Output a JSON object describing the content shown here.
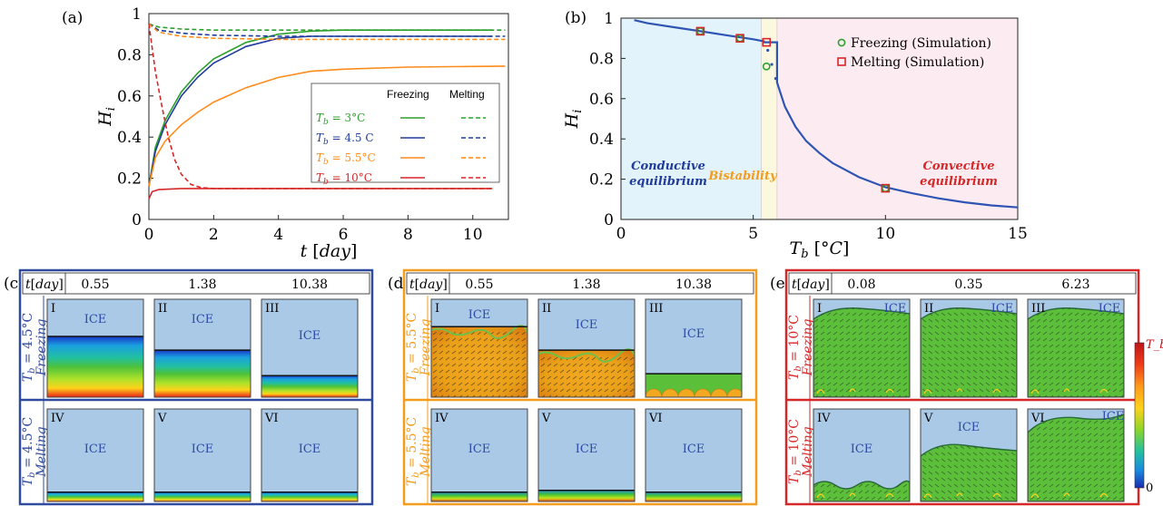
{
  "panel_labels": {
    "a": "(a)",
    "b": "(b)",
    "c": "(c)",
    "d": "(d)",
    "e": "(e)"
  },
  "chart_data": [
    {
      "type": "line",
      "panel": "(a)",
      "xlabel": "t [day]",
      "ylabel": "H_i",
      "xlim": [
        0,
        11.1
      ],
      "ylim": [
        0,
        1
      ],
      "xticks": [
        "0",
        "2",
        "4",
        "6",
        "8",
        "10"
      ],
      "yticks": [
        "0",
        "0.2",
        "0.4",
        "0.6",
        "0.8",
        "1"
      ],
      "legend": {
        "placement": "center-right",
        "col_freezing": "Freezing",
        "col_melting": "Melting",
        "rows": [
          {
            "label": "T_b = 3°C",
            "color": "#2ca02c"
          },
          {
            "label": "T_b = 4.5 C",
            "color": "#1f3c9c"
          },
          {
            "label": "T_b = 5.5°C",
            "color": "#ff8c1a"
          },
          {
            "label": "T_b = 10°C",
            "color": "#d62728"
          }
        ]
      },
      "series": [
        {
          "name": "T_b = 3°C",
          "mode": "Freezing",
          "color": "#2ca02c",
          "dash": false,
          "x": [
            0,
            0.2,
            0.5,
            1,
            1.5,
            2,
            3,
            4,
            5,
            6,
            8,
            10.6
          ],
          "y": [
            0.16,
            0.35,
            0.48,
            0.62,
            0.71,
            0.78,
            0.86,
            0.9,
            0.915,
            0.92,
            0.92,
            0.92
          ]
        },
        {
          "name": "T_b = 4.5 C",
          "mode": "Freezing",
          "color": "#1f3c9c",
          "dash": false,
          "x": [
            0,
            0.2,
            0.5,
            1,
            1.5,
            2,
            3,
            4,
            5,
            6,
            8,
            10.6
          ],
          "y": [
            0.16,
            0.33,
            0.46,
            0.6,
            0.69,
            0.76,
            0.84,
            0.88,
            0.89,
            0.89,
            0.89,
            0.89
          ]
        },
        {
          "name": "T_b = 5.5°C",
          "mode": "Freezing",
          "color": "#ff8c1a",
          "dash": false,
          "x": [
            0,
            0.2,
            0.5,
            1,
            1.5,
            2,
            3,
            4,
            5,
            6,
            8,
            11
          ],
          "y": [
            0.16,
            0.3,
            0.38,
            0.46,
            0.52,
            0.57,
            0.64,
            0.69,
            0.72,
            0.73,
            0.74,
            0.745
          ]
        },
        {
          "name": "T_b = 10°C",
          "mode": "Freezing",
          "color": "#d62728",
          "dash": false,
          "x": [
            0,
            0.1,
            0.3,
            1,
            2,
            4,
            6,
            8,
            10.6
          ],
          "y": [
            0.1,
            0.135,
            0.145,
            0.15,
            0.15,
            0.15,
            0.15,
            0.15,
            0.15
          ]
        },
        {
          "name": "T_b = 3°C",
          "mode": "Melting",
          "color": "#2ca02c",
          "dash": true,
          "x": [
            0,
            0.3,
            1,
            2,
            4,
            8,
            11
          ],
          "y": [
            0.95,
            0.935,
            0.925,
            0.92,
            0.92,
            0.92,
            0.92
          ]
        },
        {
          "name": "T_b = 4.5 C",
          "mode": "Melting",
          "color": "#1f3c9c",
          "dash": true,
          "x": [
            0,
            0.3,
            1,
            2,
            4,
            8,
            11
          ],
          "y": [
            0.95,
            0.92,
            0.905,
            0.895,
            0.89,
            0.89,
            0.89
          ]
        },
        {
          "name": "T_b = 5.5°C",
          "mode": "Melting",
          "color": "#ff8c1a",
          "dash": true,
          "x": [
            0,
            0.3,
            1,
            2,
            4,
            8,
            11
          ],
          "y": [
            0.95,
            0.91,
            0.89,
            0.88,
            0.875,
            0.875,
            0.875
          ]
        },
        {
          "name": "T_b = 10°C",
          "mode": "Melting",
          "color": "#d62728",
          "dash": true,
          "x": [
            0,
            0.2,
            0.4,
            0.6,
            0.8,
            1.0,
            1.3,
            1.6,
            2,
            4,
            8,
            10.6
          ],
          "y": [
            0.95,
            0.72,
            0.55,
            0.4,
            0.29,
            0.22,
            0.17,
            0.155,
            0.15,
            0.15,
            0.15,
            0.15
          ]
        }
      ]
    },
    {
      "type": "line",
      "panel": "(b)",
      "xlabel": "T_b [°C]",
      "ylabel": "H_i",
      "xlim": [
        0,
        15
      ],
      "ylim": [
        0,
        1
      ],
      "xticks": [
        "0",
        "5",
        "10",
        "15"
      ],
      "yticks": [
        "0",
        "0.2",
        "0.4",
        "0.6",
        "0.8",
        "1"
      ],
      "regions": [
        {
          "label": "Conductive equilibrium",
          "x": [
            0,
            5.3
          ],
          "color": "#e3f3fb",
          "text_color": "#1f3c9c"
        },
        {
          "label": "Bistability",
          "x": [
            5.3,
            5.9
          ],
          "color": "#fbf8df",
          "text_color": "#f39c1e"
        },
        {
          "label": "Convective equilibrium",
          "x": [
            5.9,
            15
          ],
          "color": "#fcecf1",
          "text_color": "#d62728"
        }
      ],
      "curve": {
        "color": "#2f55b4",
        "x": [
          0.5,
          1,
          2,
          3,
          4,
          5,
          5.4,
          5.4,
          5.9,
          5.9,
          6.2,
          6.6,
          7,
          7.5,
          8,
          9,
          10,
          11,
          12,
          13,
          14,
          15
        ],
        "y": [
          0.99,
          0.975,
          0.955,
          0.935,
          0.915,
          0.895,
          0.885,
          0.88,
          0.88,
          0.68,
          0.56,
          0.46,
          0.39,
          0.33,
          0.28,
          0.21,
          0.16,
          0.13,
          0.105,
          0.085,
          0.07,
          0.06
        ]
      },
      "dotted": {
        "x": [
          5.55,
          5.7,
          5.85
        ],
        "y": [
          0.84,
          0.77,
          0.7
        ]
      },
      "legend": {
        "placement": "top-right",
        "freezing": "Freezing (Simulation)",
        "melting": "Melting (Simulation)"
      },
      "freezing_points": {
        "color": "#2ca02c",
        "x": [
          3,
          4.5,
          5.5,
          10
        ],
        "y": [
          0.935,
          0.9,
          0.76,
          0.155
        ]
      },
      "melting_points": {
        "color": "#d62728",
        "x": [
          3,
          4.5,
          5.5,
          10
        ],
        "y": [
          0.935,
          0.9,
          0.88,
          0.155
        ]
      }
    }
  ],
  "snapshots": {
    "time_label": "t[day]",
    "ice_label": "ICE",
    "colorbar": {
      "top": "T_b",
      "bottom": "0"
    },
    "panels": [
      {
        "id": "c",
        "border": "#2f4a9e",
        "label_color": "#2f4a9e",
        "times": [
          "0.55",
          "1.38",
          "10.38"
        ],
        "row1": {
          "tb": "T_b = 4.5°C",
          "mode": "Freezing"
        },
        "row2": {
          "tb": "T_b = 4.5°C",
          "mode": "Melting"
        },
        "romans": [
          "I",
          "II",
          "III",
          "IV",
          "V",
          "VI"
        ],
        "ice_fraction": [
          0.38,
          0.52,
          0.78,
          0.9,
          0.9,
          0.9
        ],
        "style": "conductive"
      },
      {
        "id": "d",
        "border": "#f39c1e",
        "label_color": "#f39c1e",
        "times": [
          "0.55",
          "1.38",
          "10.38"
        ],
        "row1": {
          "tb": "T_b = 5.5°C",
          "mode": "Freezing"
        },
        "row2": {
          "tb": "T_b = 5.5°C",
          "mode": "Melting"
        },
        "romans": [
          "I",
          "II",
          "III",
          "IV",
          "V",
          "VI"
        ],
        "ice_fraction": [
          0.28,
          0.52,
          0.76,
          0.9,
          0.88,
          0.9
        ],
        "style": "bistable"
      },
      {
        "id": "e",
        "border": "#d62728",
        "label_color": "#d62728",
        "times": [
          "0.08",
          "0.35",
          "6.23"
        ],
        "row1": {
          "tb": "T_b = 10°C",
          "mode": "Freezing"
        },
        "row2": {
          "tb": "T_b = 10°C",
          "mode": "Melting"
        },
        "romans": [
          "I",
          "II",
          "III",
          "IV",
          "V",
          "VI"
        ],
        "ice_fraction": [
          0.1,
          0.1,
          0.1,
          0.8,
          0.45,
          0.12
        ],
        "style": "convective"
      }
    ]
  }
}
